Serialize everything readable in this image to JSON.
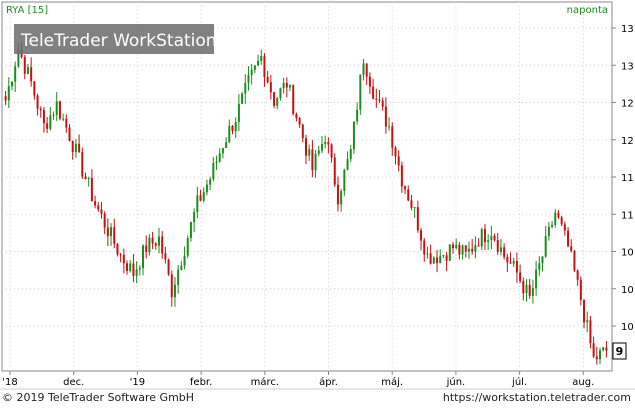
{
  "chart_data": {
    "type": "candlestick",
    "title": "RYA [15]",
    "interval_label": "naponta",
    "watermark": "TeleTrader WorkStation",
    "last_price_tag": "9",
    "x_tick_labels": [
      "'18",
      "dec.",
      "'19",
      "febr.",
      "márc.",
      "ápr.",
      "máj.",
      "jún.",
      "júl.",
      "aug."
    ],
    "y_tick_labels": [
      "13",
      "13",
      "12",
      "12",
      "11",
      "11",
      "10",
      "10",
      "10"
    ],
    "grid": true,
    "up_color": "#1e8c1e",
    "down_color": "#c41212",
    "title_color": "#1e8c1e",
    "anchor_closes": [
      12.3,
      12.9,
      12.5,
      12.0,
      12.25,
      11.9,
      11.5,
      11.1,
      10.8,
      10.5,
      10.3,
      10.6,
      10.7,
      10.1,
      10.6,
      11.1,
      11.4,
      11.8,
      12.1,
      12.5,
      12.8,
      12.3,
      12.5,
      12.0,
      11.5,
      11.9,
      11.2,
      11.7,
      12.8,
      12.3,
      12.0,
      11.4,
      11.0,
      10.5,
      10.5,
      10.6,
      10.5,
      10.7,
      10.8,
      10.5,
      10.3,
      10.0,
      10.5,
      11.0,
      10.6,
      10.0,
      9.3,
      9.4
    ],
    "ylim": [
      9.2,
      13.3
    ]
  },
  "footer": {
    "copyright": "© 2019 TeleTrader Software GmbH",
    "url": "https://workstation.teletrader.com"
  }
}
